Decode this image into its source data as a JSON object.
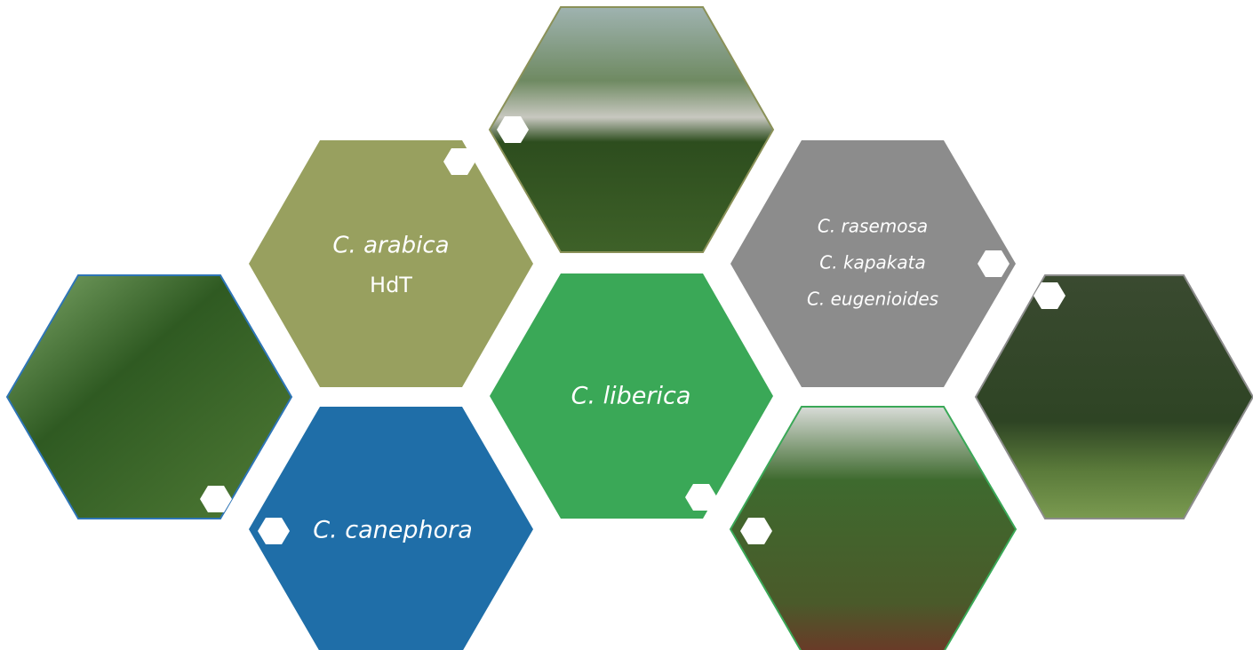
{
  "tiles": [
    {
      "lines": [
        "C. arabica",
        "HdT"
      ]
    },
    {
      "lines": [
        "C. canephora"
      ]
    },
    {
      "lines": [
        "C. liberica"
      ]
    },
    {
      "lines": [
        "C. rasemosa",
        "C. kapakata",
        "C. eugenioides"
      ]
    }
  ]
}
